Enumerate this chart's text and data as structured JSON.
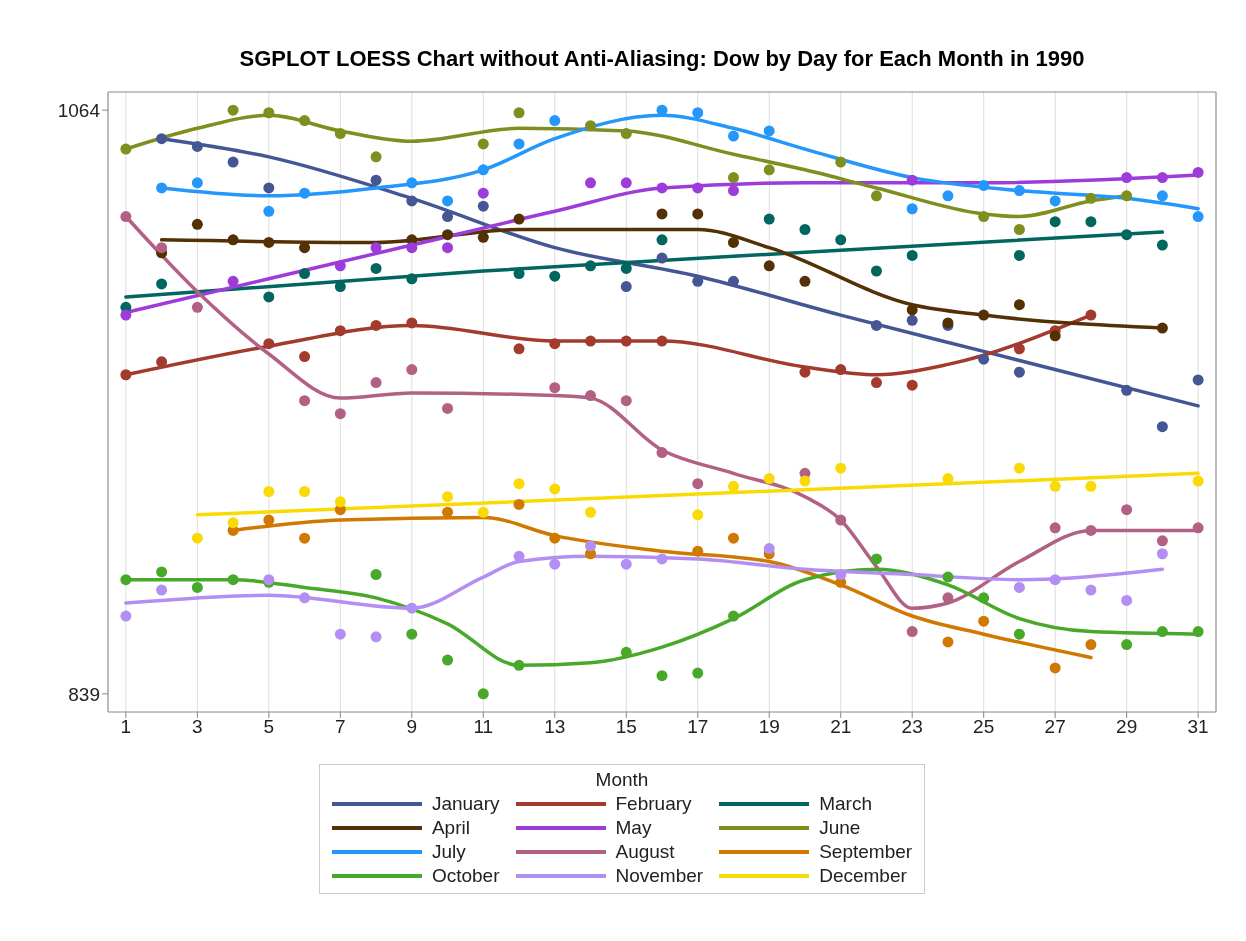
{
  "chart_data": {
    "type": "line",
    "title": "SGPLOT LOESS Chart without Anti-Aliasing: Dow by Day for Each Month in 1990",
    "legend_title": "Month",
    "legend": "bottom",
    "grid": "x",
    "xlim": [
      0.5,
      31.5
    ],
    "xticks": [
      1,
      3,
      5,
      7,
      9,
      11,
      13,
      15,
      17,
      19,
      21,
      23,
      25,
      27,
      29,
      31
    ],
    "ylim": [
      832,
      1071
    ],
    "yticks": [
      839,
      1064
    ],
    "series": [
      {
        "type": "scatter",
        "marker": "circle",
        "color": "#445694",
        "x": [
          2,
          3,
          4,
          5,
          8,
          9,
          10,
          11,
          15,
          16,
          17,
          18,
          22,
          23,
          24,
          25,
          26,
          29,
          30,
          31
        ],
        "values": [
          1053,
          1050,
          1044,
          1034,
          1037,
          1029,
          1023,
          1027,
          996,
          1007,
          998,
          998,
          981,
          983,
          981,
          968,
          963,
          956,
          942,
          960
        ]
      },
      {
        "type": "scatter",
        "marker": "circle",
        "color": "#a23a2e",
        "x": [
          1,
          2,
          5,
          6,
          7,
          8,
          9,
          12,
          13,
          14,
          15,
          16,
          20,
          21,
          22,
          23,
          26,
          27,
          28
        ],
        "values": [
          962,
          967,
          974,
          969,
          979,
          981,
          982,
          972,
          974,
          975,
          975,
          975,
          963,
          964,
          959,
          958,
          972,
          979,
          985
        ]
      },
      {
        "type": "scatter",
        "marker": "circle",
        "color": "#01665e",
        "x": [
          1,
          2,
          5,
          6,
          7,
          8,
          9,
          12,
          13,
          14,
          15,
          16,
          19,
          20,
          21,
          22,
          23,
          26,
          27,
          28,
          29,
          30
        ],
        "values": [
          988,
          997,
          992,
          1001,
          996,
          1003,
          999,
          1001,
          1000,
          1004,
          1003,
          1014,
          1022,
          1018,
          1014,
          1002,
          1008,
          1008,
          1021,
          1021,
          1016,
          1012
        ]
      },
      {
        "type": "scatter",
        "marker": "circle",
        "color": "#543005",
        "x": [
          2,
          3,
          4,
          5,
          6,
          9,
          10,
          11,
          12,
          16,
          17,
          18,
          19,
          20,
          23,
          24,
          25,
          26,
          27,
          30
        ],
        "values": [
          1009,
          1020,
          1014,
          1013,
          1011,
          1014,
          1016,
          1015,
          1022,
          1024,
          1024,
          1013,
          1004,
          998,
          987,
          982,
          985,
          989,
          977,
          980
        ]
      },
      {
        "type": "scatter",
        "marker": "circle",
        "color": "#9d3cdb",
        "x": [
          1,
          4,
          7,
          8,
          9,
          10,
          11,
          14,
          15,
          16,
          17,
          18,
          23,
          29,
          30,
          31
        ],
        "values": [
          985,
          998,
          1004,
          1011,
          1011,
          1011,
          1032,
          1036,
          1036,
          1034,
          1034,
          1033,
          1037,
          1038,
          1038,
          1040
        ]
      },
      {
        "type": "scatter",
        "marker": "circle",
        "color": "#7f8e1f",
        "x": [
          1,
          4,
          5,
          6,
          7,
          8,
          11,
          12,
          14,
          15,
          18,
          19,
          21,
          22,
          25,
          26,
          28,
          29
        ],
        "values": [
          1049,
          1064,
          1063,
          1060,
          1055,
          1046,
          1051,
          1063,
          1058,
          1055,
          1038,
          1041,
          1044,
          1031,
          1023,
          1018,
          1030,
          1031
        ]
      },
      {
        "type": "scatter",
        "marker": "circle",
        "color": "#2597fa",
        "x": [
          2,
          3,
          5,
          6,
          9,
          10,
          11,
          12,
          13,
          16,
          17,
          18,
          19,
          23,
          24,
          25,
          26,
          27,
          30,
          31
        ],
        "values": [
          1034,
          1036,
          1025,
          1032,
          1036,
          1029,
          1041,
          1051,
          1060,
          1064,
          1063,
          1054,
          1056,
          1026,
          1031,
          1035,
          1033,
          1029,
          1031,
          1023
        ]
      },
      {
        "type": "scatter",
        "marker": "circle",
        "color": "#b26084",
        "x": [
          1,
          2,
          3,
          6,
          7,
          8,
          9,
          10,
          13,
          14,
          15,
          16,
          17,
          20,
          21,
          23,
          24,
          27,
          28,
          29,
          30,
          31
        ],
        "values": [
          1023,
          1011,
          988,
          952,
          947,
          959,
          964,
          949,
          957,
          954,
          952,
          932,
          920,
          924,
          906,
          863,
          876,
          903,
          902,
          910,
          898,
          903
        ]
      },
      {
        "type": "scatter",
        "marker": "circle",
        "color": "#d17800",
        "x": [
          4,
          5,
          6,
          7,
          10,
          12,
          13,
          14,
          17,
          18,
          19,
          21,
          24,
          25,
          27,
          28
        ],
        "values": [
          902,
          906,
          899,
          910,
          909,
          912,
          899,
          893,
          894,
          899,
          893,
          882,
          859,
          867,
          849,
          858
        ]
      },
      {
        "type": "scatter",
        "marker": "circle",
        "color": "#47a82a",
        "x": [
          1,
          2,
          3,
          4,
          5,
          8,
          9,
          10,
          11,
          12,
          15,
          16,
          17,
          18,
          22,
          24,
          25,
          26,
          29,
          30,
          31
        ],
        "values": [
          883,
          886,
          880,
          883,
          882,
          885,
          862,
          852,
          839,
          850,
          855,
          846,
          847,
          869,
          891,
          884,
          876,
          862,
          858,
          863,
          863
        ]
      },
      {
        "type": "scatter",
        "marker": "circle",
        "color": "#b38ef3",
        "x": [
          1,
          2,
          5,
          6,
          7,
          8,
          9,
          12,
          13,
          14,
          15,
          16,
          19,
          21,
          26,
          27,
          28,
          29,
          30
        ],
        "values": [
          869,
          879,
          883,
          876,
          862,
          861,
          872,
          892,
          889,
          896,
          889,
          891,
          895,
          885,
          880,
          883,
          879,
          875,
          893
        ]
      },
      {
        "type": "scatter",
        "marker": "circle",
        "color": "#f9da04",
        "x": [
          3,
          4,
          5,
          6,
          7,
          10,
          11,
          12,
          13,
          14,
          17,
          18,
          19,
          20,
          21,
          24,
          26,
          27,
          28,
          31
        ],
        "values": [
          899,
          905,
          917,
          917,
          913,
          915,
          909,
          920,
          918,
          909,
          908,
          919,
          922,
          921,
          926,
          922,
          926,
          919,
          919,
          921
        ]
      },
      {
        "name": "January",
        "marker": "none",
        "color": "#445694",
        "x": [
          2,
          5,
          9,
          13,
          17,
          21,
          25,
          31
        ],
        "values": [
          1053,
          1046,
          1030,
          1011,
          1000,
          985,
          971,
          950
        ]
      },
      {
        "name": "February",
        "marker": "none",
        "color": "#a23a2e",
        "x": [
          1,
          5,
          9,
          13,
          16,
          20,
          22,
          24,
          28
        ],
        "values": [
          962,
          973,
          981,
          975,
          975,
          965,
          962,
          966,
          985
        ]
      },
      {
        "name": "March",
        "marker": "none",
        "color": "#01665e",
        "x": [
          1,
          11,
          21,
          30
        ],
        "values": [
          992,
          1002,
          1010,
          1017
        ]
      },
      {
        "name": "April",
        "marker": "none",
        "color": "#543005",
        "x": [
          2,
          8,
          12,
          17,
          19,
          23,
          25,
          30
        ],
        "values": [
          1014,
          1013,
          1018,
          1018,
          1011,
          989,
          985,
          980
        ]
      },
      {
        "name": "May",
        "marker": "none",
        "color": "#9d3cdb",
        "x": [
          1,
          5,
          9,
          13,
          16,
          20,
          25,
          31
        ],
        "values": [
          986,
          999,
          1012,
          1025,
          1034,
          1036,
          1036,
          1039
        ]
      },
      {
        "name": "June",
        "marker": "none",
        "color": "#7f8e1f",
        "x": [
          1,
          3,
          5,
          7,
          9,
          12,
          15,
          18,
          20,
          22,
          25,
          26,
          28,
          29
        ],
        "values": [
          1049,
          1057,
          1062,
          1056,
          1052,
          1057,
          1056,
          1047,
          1041,
          1034,
          1024,
          1023,
          1029,
          1031
        ]
      },
      {
        "name": "July",
        "marker": "none",
        "color": "#2597fa",
        "x": [
          2,
          5,
          8,
          11,
          13,
          16,
          18,
          20,
          23,
          26,
          29,
          31
        ],
        "values": [
          1034,
          1031,
          1034,
          1041,
          1053,
          1062,
          1057,
          1049,
          1038,
          1033,
          1030,
          1026
        ]
      },
      {
        "name": "August",
        "marker": "none",
        "color": "#b26084",
        "x": [
          1,
          3,
          5,
          7,
          9,
          13,
          14,
          16,
          18,
          20,
          21,
          22,
          23,
          24,
          26,
          28,
          31
        ],
        "values": [
          1023,
          994,
          970,
          953,
          955,
          954,
          953,
          933,
          924,
          915,
          906,
          888,
          872,
          874,
          890,
          902,
          902
        ]
      },
      {
        "name": "September",
        "marker": "none",
        "color": "#d17800",
        "x": [
          4,
          7,
          11,
          13,
          16,
          19,
          21,
          23,
          25,
          28
        ],
        "values": [
          902,
          906,
          907,
          900,
          894,
          890,
          881,
          869,
          862,
          853
        ]
      },
      {
        "name": "October",
        "marker": "none",
        "color": "#47a82a",
        "x": [
          1,
          4,
          6,
          8,
          10,
          12,
          14,
          16,
          18,
          20,
          22,
          24,
          26,
          28,
          31
        ],
        "values": [
          883,
          883,
          880,
          876,
          866,
          850,
          851,
          857,
          868,
          883,
          887,
          881,
          868,
          863,
          862
        ]
      },
      {
        "name": "November",
        "marker": "none",
        "color": "#b38ef3",
        "x": [
          1,
          5,
          9,
          11,
          12,
          14,
          17,
          20,
          23,
          26,
          30
        ],
        "values": [
          874,
          877,
          872,
          884,
          890,
          892,
          891,
          887,
          885,
          883,
          887
        ]
      },
      {
        "name": "December",
        "marker": "none",
        "color": "#f9da04",
        "x": [
          3,
          31
        ],
        "values": [
          908,
          924
        ]
      }
    ]
  }
}
